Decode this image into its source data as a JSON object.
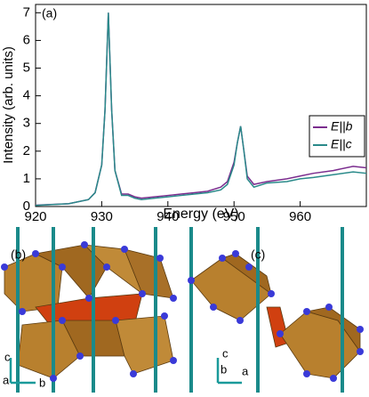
{
  "chart_data": {
    "type": "line",
    "annotation": "(a)",
    "xlabel": "Energy (eV)",
    "ylabel": "Intensity (arb. units)",
    "x": [
      920,
      925,
      928,
      929,
      930,
      930.5,
      931,
      931.5,
      932,
      933,
      934,
      935,
      936,
      938,
      940,
      942,
      944,
      946,
      948,
      949,
      950,
      950.5,
      951,
      951.5,
      952,
      953,
      955,
      958,
      960,
      962,
      965,
      968,
      970
    ],
    "series": [
      {
        "name": "E||b",
        "color": "#7b2d8e",
        "values": [
          0.05,
          0.1,
          0.25,
          0.5,
          1.5,
          3.5,
          7.0,
          3.5,
          1.3,
          0.45,
          0.45,
          0.35,
          0.3,
          0.35,
          0.4,
          0.45,
          0.5,
          0.55,
          0.7,
          0.9,
          1.6,
          2.3,
          2.9,
          2.0,
          1.1,
          0.8,
          0.9,
          1.0,
          1.1,
          1.2,
          1.3,
          1.45,
          1.4
        ]
      },
      {
        "name": "E||c",
        "color": "#2a8a8a",
        "values": [
          0.04,
          0.1,
          0.25,
          0.5,
          1.5,
          3.5,
          7.0,
          3.5,
          1.3,
          0.4,
          0.4,
          0.3,
          0.25,
          0.3,
          0.35,
          0.4,
          0.45,
          0.5,
          0.6,
          0.8,
          1.5,
          2.3,
          2.9,
          2.0,
          1.0,
          0.7,
          0.85,
          0.9,
          1.0,
          1.05,
          1.15,
          1.25,
          1.2
        ]
      }
    ],
    "xlim": [
      920,
      970
    ],
    "ylim": [
      0,
      7.3
    ],
    "xticks": [
      920,
      930,
      940,
      950,
      960
    ],
    "yticks": [
      0,
      1,
      2,
      3,
      4,
      5,
      6,
      7
    ],
    "legend": "right"
  },
  "panels": [
    {
      "label": "(b)",
      "axes": [
        "c",
        "a",
        "b"
      ]
    },
    {
      "label": "(c)",
      "axes": [
        "c",
        "b",
        "a"
      ]
    }
  ]
}
